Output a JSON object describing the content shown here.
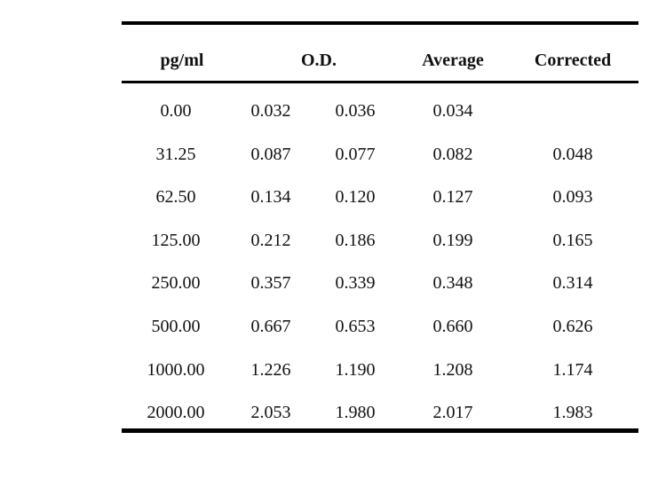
{
  "table": {
    "headers": {
      "concentration": "pg/ml",
      "od": "O.D.",
      "average": "Average",
      "corrected": "Corrected"
    },
    "rows": [
      {
        "conc": "0.00",
        "od1": "0.032",
        "od2": "0.036",
        "avg": "0.034",
        "corr": ""
      },
      {
        "conc": "31.25",
        "od1": "0.087",
        "od2": "0.077",
        "avg": "0.082",
        "corr": "0.048"
      },
      {
        "conc": "62.50",
        "od1": "0.134",
        "od2": "0.120",
        "avg": "0.127",
        "corr": "0.093"
      },
      {
        "conc": "125.00",
        "od1": "0.212",
        "od2": "0.186",
        "avg": "0.199",
        "corr": "0.165"
      },
      {
        "conc": "250.00",
        "od1": "0.357",
        "od2": "0.339",
        "avg": "0.348",
        "corr": "0.314"
      },
      {
        "conc": "500.00",
        "od1": "0.667",
        "od2": "0.653",
        "avg": "0.660",
        "corr": "0.626"
      },
      {
        "conc": "1000.00",
        "od1": "1.226",
        "od2": "1.190",
        "avg": "1.208",
        "corr": "1.174"
      },
      {
        "conc": "2000.00",
        "od1": "2.053",
        "od2": "1.980",
        "avg": "2.017",
        "corr": "1.983"
      }
    ]
  }
}
